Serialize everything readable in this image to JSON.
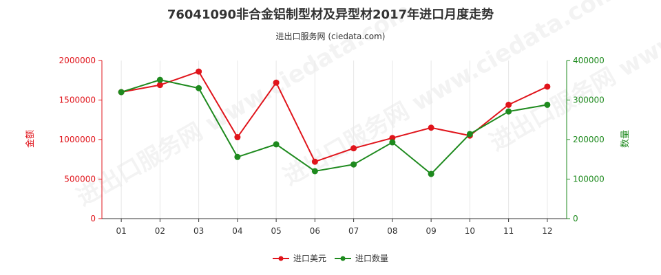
{
  "chart_data": {
    "type": "line",
    "title": "76041090非合金铝制型材及异型材2017年进口月度走势",
    "subtitle": "进出口服务网 (ciedata.com)",
    "watermark": "进出口服务网 www.ciedata.com",
    "categories": [
      "01",
      "02",
      "03",
      "04",
      "05",
      "06",
      "07",
      "08",
      "09",
      "10",
      "11",
      "12"
    ],
    "y_left": {
      "label": "金额",
      "ylim": [
        0,
        2000000
      ],
      "ticks": [
        "0",
        "500000",
        "1000000",
        "1500000",
        "2000000"
      ],
      "color": "#e0141b"
    },
    "y_right": {
      "label": "数量",
      "ylim": [
        0,
        400000
      ],
      "ticks": [
        "0",
        "100000",
        "200000",
        "300000",
        "400000"
      ],
      "color": "#1e8a1e"
    },
    "series": [
      {
        "name": "进口美元",
        "axis": "left",
        "color": "#e0141b",
        "values": [
          1600000,
          1690000,
          1860000,
          1030000,
          1720000,
          720000,
          890000,
          1020000,
          1150000,
          1050000,
          1440000,
          1670000
        ]
      },
      {
        "name": "进口数量",
        "axis": "right",
        "color": "#1e8a1e",
        "values": [
          320000,
          351000,
          330000,
          156000,
          188000,
          120000,
          137000,
          193000,
          113000,
          214000,
          271000,
          288000
        ]
      }
    ],
    "grid": {
      "vertical": true,
      "horizontal": false
    },
    "legend_position": "bottom-center"
  }
}
